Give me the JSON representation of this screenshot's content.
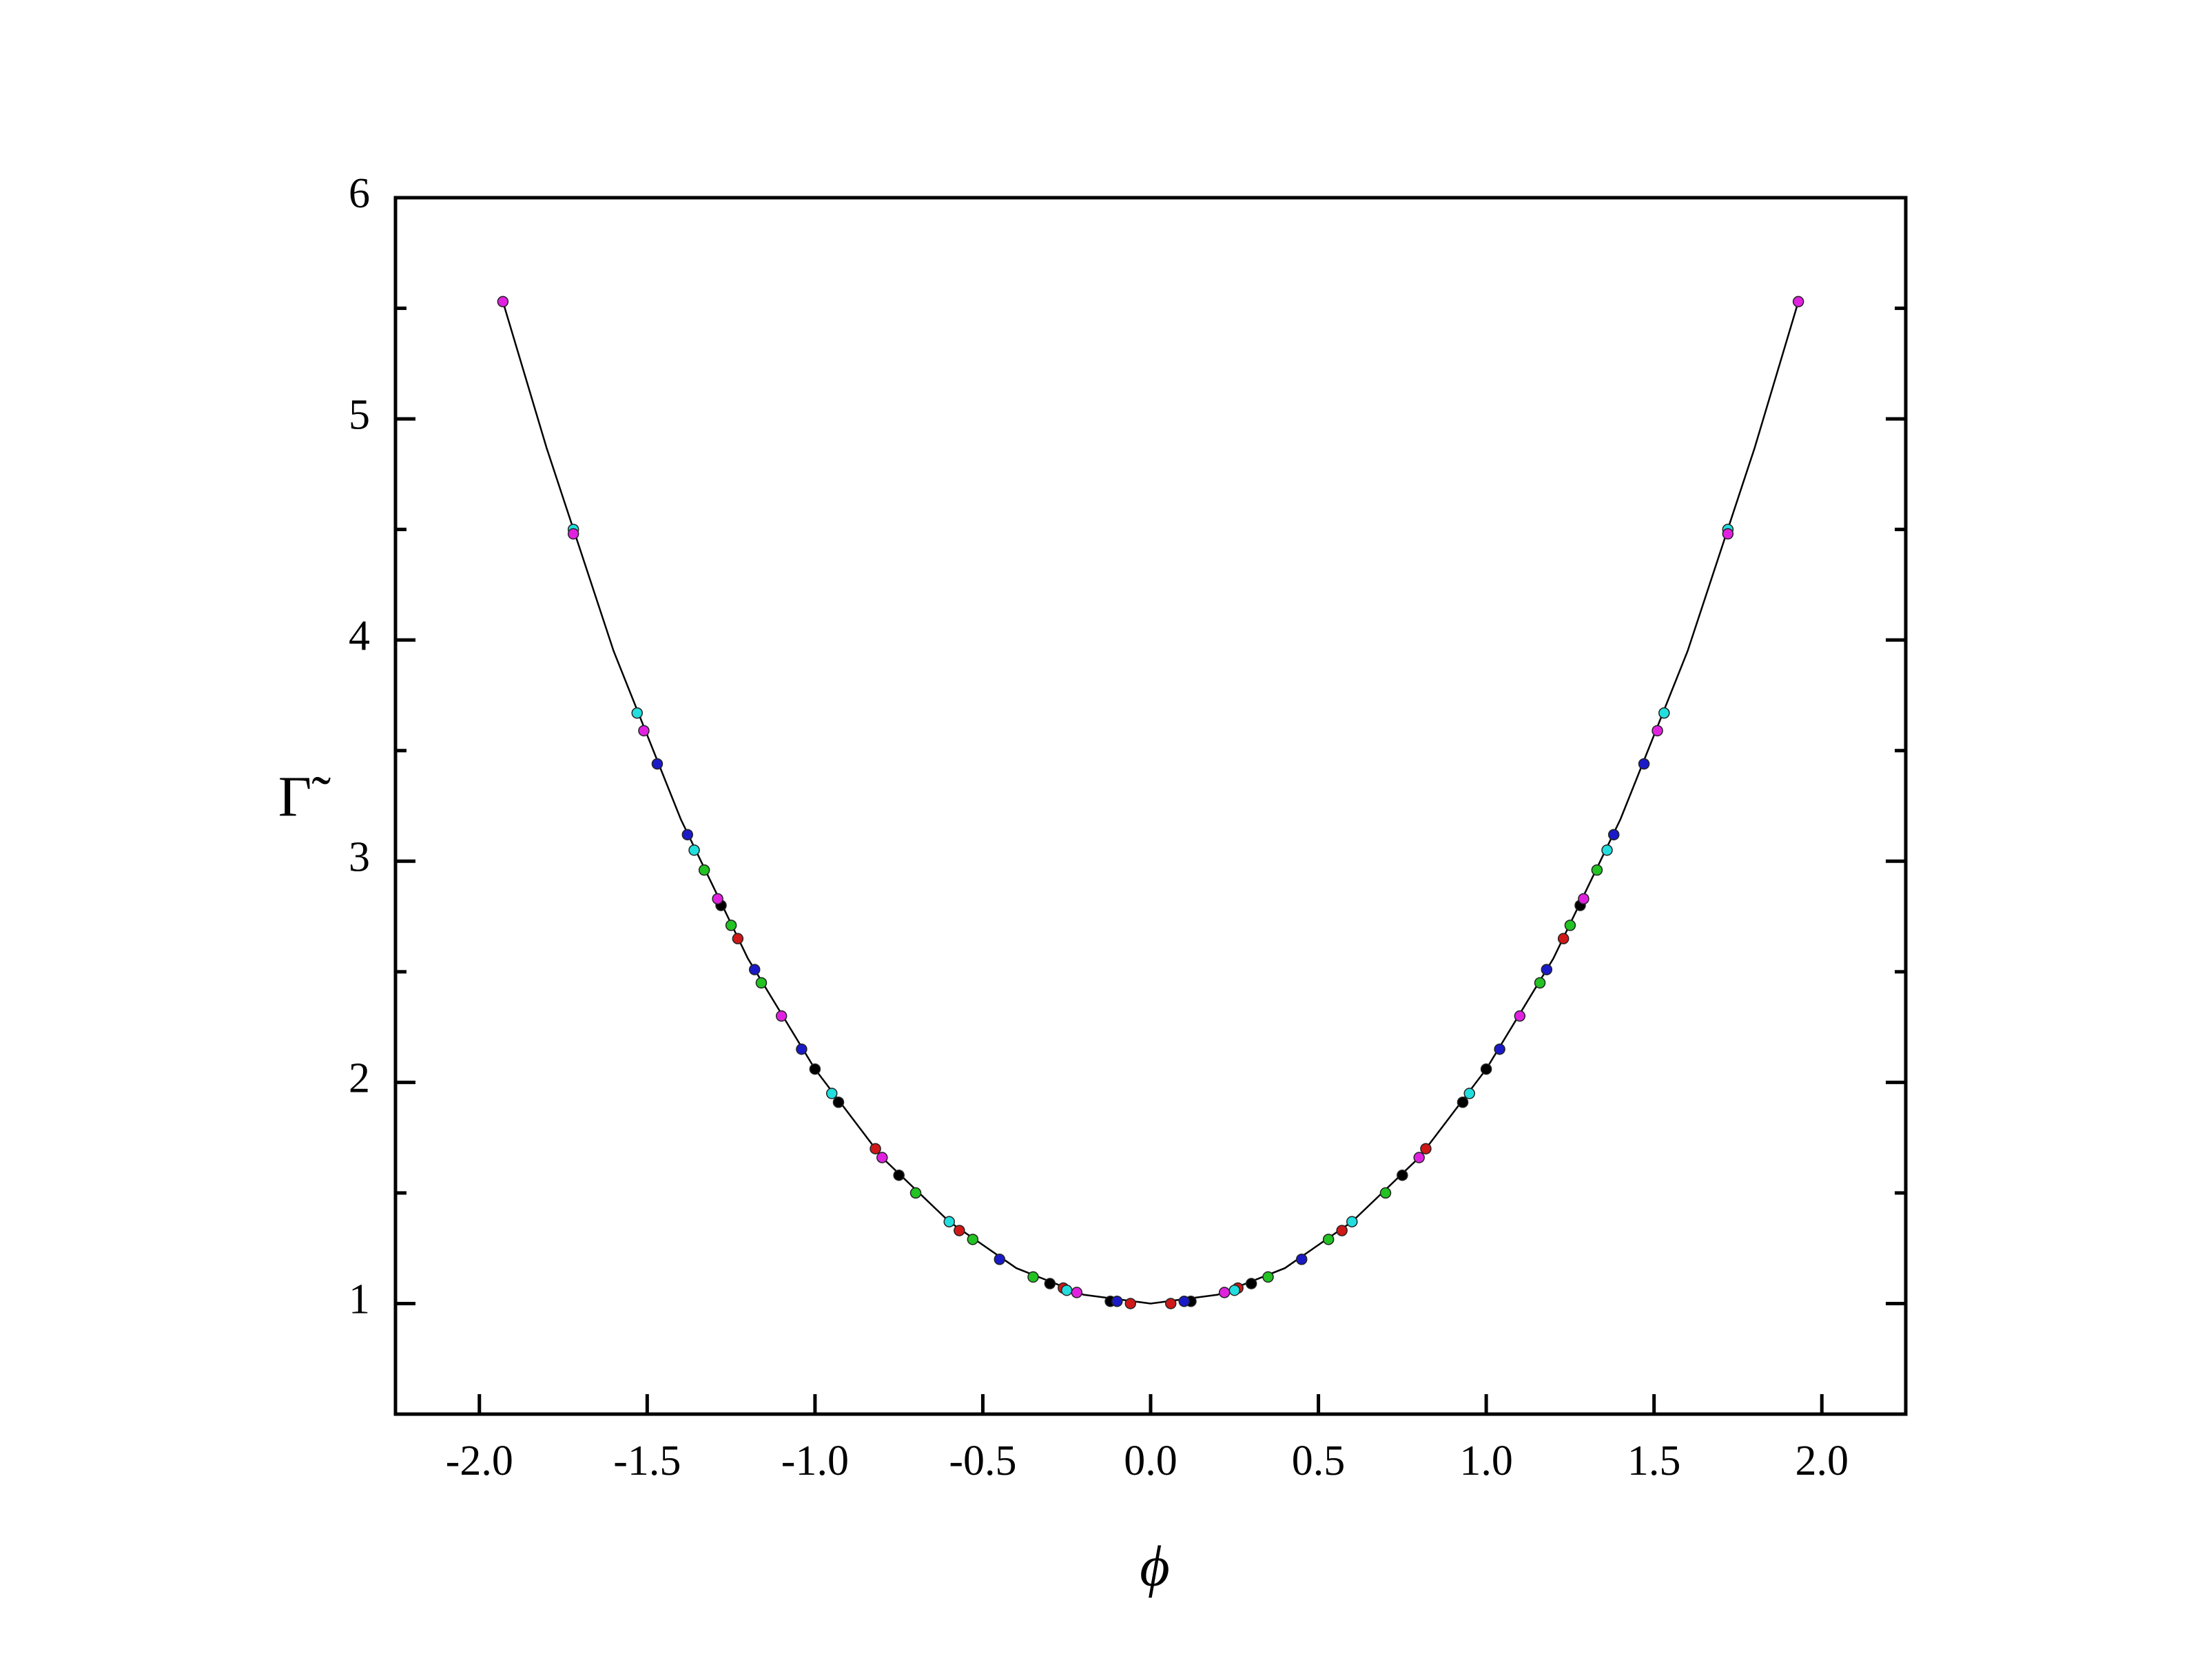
{
  "chart_data": {
    "type": "scatter",
    "x_label": "ϕ",
    "y_label": "Γ̃",
    "xlim": [
      -2.25,
      2.25
    ],
    "ylim": [
      0.5,
      6
    ],
    "xticks": [
      {
        "value": -2,
        "label": "-2.0"
      },
      {
        "value": -1.5,
        "label": "-1.5"
      },
      {
        "value": -1,
        "label": "-1.0"
      },
      {
        "value": -0.5,
        "label": "-0.5"
      },
      {
        "value": 0,
        "label": "0.0"
      },
      {
        "value": 0.5,
        "label": "0.5"
      },
      {
        "value": 1,
        "label": "1.0"
      },
      {
        "value": 1.5,
        "label": "1.5"
      },
      {
        "value": 2,
        "label": "2.0"
      }
    ],
    "yticks": [
      1,
      2,
      3,
      4,
      5,
      6
    ],
    "yminorticks": [
      1.5,
      2.5,
      3.5,
      4.5,
      5.5
    ],
    "curve": {
      "color": "#000000",
      "x": [
        -1.93,
        -1.8,
        -1.6,
        -1.4,
        -1.2,
        -1.0,
        -0.8,
        -0.6,
        -0.4,
        -0.2,
        0,
        0.2,
        0.4,
        0.6,
        0.8,
        1.0,
        1.2,
        1.4,
        1.6,
        1.8,
        1.93
      ],
      "y": [
        5.53,
        4.87,
        3.95,
        3.19,
        2.56,
        2.06,
        1.66,
        1.37,
        1.16,
        1.04,
        1.0,
        1.04,
        1.16,
        1.37,
        1.66,
        2.06,
        2.56,
        3.19,
        3.95,
        4.87,
        5.53
      ]
    },
    "series": [
      {
        "color": "#000000",
        "x": [
          -1.28,
          -1.0,
          -0.93,
          -0.75,
          -0.3,
          -0.12,
          0.12,
          0.3,
          0.75,
          0.93,
          1.0,
          1.28
        ],
        "y": [
          2.8,
          2.06,
          1.91,
          1.58,
          1.09,
          1.01,
          1.01,
          1.09,
          1.58,
          1.91,
          2.06,
          2.8
        ]
      },
      {
        "color": "#d01818",
        "x": [
          -1.23,
          -0.82,
          -0.57,
          -0.26,
          -0.06,
          0.06,
          0.26,
          0.57,
          0.82,
          1.23
        ],
        "y": [
          2.65,
          1.7,
          1.33,
          1.07,
          1.0,
          1.0,
          1.07,
          1.33,
          1.7,
          2.65
        ]
      },
      {
        "color": "#22c322",
        "x": [
          -1.33,
          -1.25,
          -1.16,
          -0.7,
          -0.53,
          -0.35,
          0.35,
          0.53,
          0.7,
          1.16,
          1.25,
          1.33
        ],
        "y": [
          2.96,
          2.71,
          2.45,
          1.5,
          1.29,
          1.12,
          1.12,
          1.29,
          1.5,
          2.45,
          2.71,
          2.96
        ]
      },
      {
        "color": "#1a1ac8",
        "x": [
          -1.47,
          -1.38,
          -1.18,
          -1.04,
          -0.45,
          -0.1,
          0.1,
          0.45,
          1.04,
          1.18,
          1.38,
          1.47
        ],
        "y": [
          3.44,
          3.12,
          2.51,
          2.15,
          1.2,
          1.01,
          1.01,
          1.2,
          2.15,
          2.51,
          3.12,
          3.44
        ]
      },
      {
        "color": "#22dede",
        "x": [
          -1.72,
          -1.53,
          -1.36,
          -0.95,
          -0.6,
          -0.25,
          0.25,
          0.6,
          0.95,
          1.36,
          1.53,
          1.72
        ],
        "y": [
          4.5,
          3.67,
          3.05,
          1.95,
          1.37,
          1.06,
          1.06,
          1.37,
          1.95,
          3.05,
          3.67,
          4.5
        ]
      },
      {
        "color": "#e022e0",
        "x": [
          -1.93,
          -1.72,
          -1.51,
          -1.29,
          -1.1,
          -0.8,
          -0.22,
          0.22,
          0.8,
          1.1,
          1.29,
          1.51,
          1.72,
          1.93
        ],
        "y": [
          5.53,
          4.48,
          3.59,
          2.83,
          2.3,
          1.66,
          1.05,
          1.05,
          1.66,
          2.3,
          2.83,
          3.59,
          4.48,
          5.53
        ]
      }
    ]
  }
}
